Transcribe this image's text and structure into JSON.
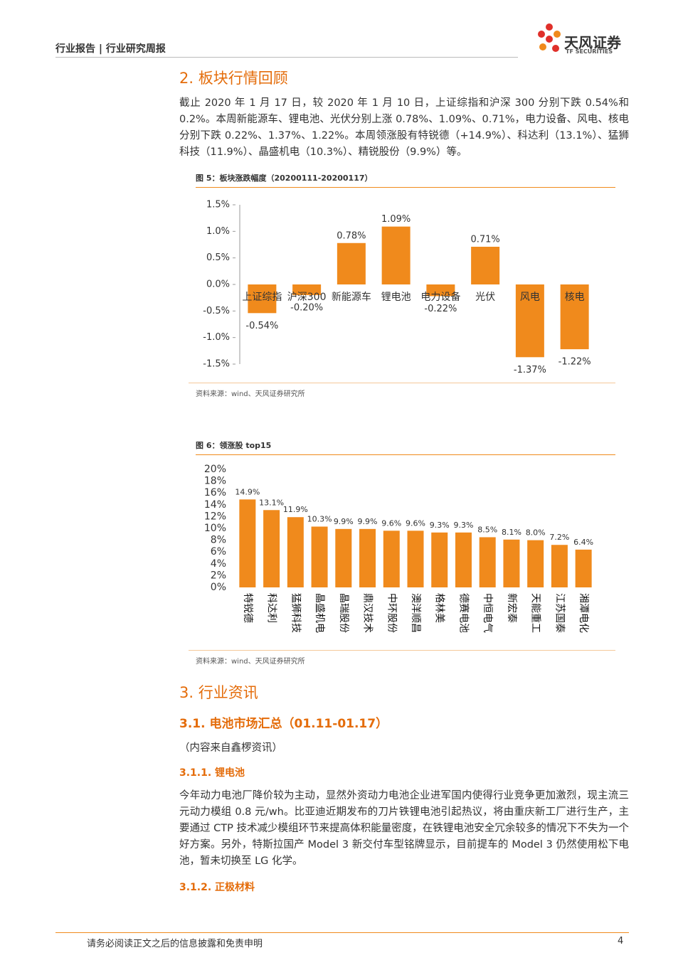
{
  "header": {
    "title": "行业报告 | 行业研究周报",
    "brand": "天风证券",
    "brand_en": "TF SECURITIES"
  },
  "section2": {
    "title": "2. 板块行情回顾",
    "paragraph": "截止 2020 年 1 月 17 日，较 2020 年 1 月 10 日，上证综指和沪深 300 分别下跌 0.54%和 0.2%。本周新能源车、锂电池、光伏分别上涨 0.78%、1.09%、0.71%，电力设备、风电、核电分别下跌 0.22%、1.37%、1.22%。本周领涨股有特锐德（+14.9%）、科达利（13.1%）、猛狮科技（11.9%）、晶盛机电（10.3%）、精锐股份（9.9%）等。"
  },
  "chart_data": [
    {
      "type": "bar",
      "title": "图 5：板块涨跌幅度（20200111-20200117）",
      "source": "资料来源：wind、天风证券研究所",
      "categories": [
        "上证综指",
        "沪深300",
        "新能源车",
        "锂电池",
        "电力设备",
        "光伏",
        "风电",
        "核电"
      ],
      "values": [
        -0.54,
        -0.2,
        0.78,
        1.09,
        -0.22,
        0.71,
        -1.37,
        -1.22
      ],
      "value_labels": [
        "-0.54%",
        "-0.20%",
        "0.78%",
        "1.09%",
        "-0.22%",
        "0.71%",
        "-1.37%",
        "-1.22%"
      ],
      "color": "#f08a1c",
      "ylim": [
        -1.5,
        1.5
      ],
      "yticks": [
        {
          "value": 1.5,
          "label": "1.5%"
        },
        {
          "value": 1.0,
          "label": "1.0%"
        },
        {
          "value": 0.5,
          "label": "0.5%"
        },
        {
          "value": 0.0,
          "label": "0.0%"
        },
        {
          "value": -0.5,
          "label": "-0.5%"
        },
        {
          "value": -1.0,
          "label": "-1.0%"
        },
        {
          "value": -1.5,
          "label": "-1.5%"
        }
      ]
    },
    {
      "type": "bar",
      "title": "图 6：领涨股 top15",
      "source": "资料来源：wind、天风证券研究所",
      "categories": [
        "特锐德",
        "科达利",
        "猛狮科技",
        "晶盛机电",
        "晶瑞股份",
        "鼎汉技术",
        "中环股份",
        "澳洋顺昌",
        "格林美",
        "德赛电池",
        "中恒电气",
        "新宏泰",
        "天能重工",
        "江苏国泰",
        "湘潭电化"
      ],
      "values": [
        14.9,
        13.1,
        11.9,
        10.3,
        9.9,
        9.9,
        9.6,
        9.6,
        9.3,
        9.3,
        8.5,
        8.1,
        8.0,
        7.2,
        6.4
      ],
      "value_labels": [
        "14.9%",
        "13.1%",
        "11.9%",
        "10.3%",
        "9.9%",
        "9.9%",
        "9.6%",
        "9.6%",
        "9.3%",
        "9.3%",
        "8.5%",
        "8.1%",
        "8.0%",
        "7.2%",
        "6.4%"
      ],
      "color": "#f08a1c",
      "ylim": [
        0,
        20
      ],
      "yticks": [
        {
          "value": 0,
          "label": "0%"
        },
        {
          "value": 2,
          "label": "2%"
        },
        {
          "value": 4,
          "label": "4%"
        },
        {
          "value": 6,
          "label": "6%"
        },
        {
          "value": 8,
          "label": "8%"
        },
        {
          "value": 10,
          "label": "10%"
        },
        {
          "value": 12,
          "label": "12%"
        },
        {
          "value": 14,
          "label": "14%"
        },
        {
          "value": 16,
          "label": "16%"
        },
        {
          "value": 18,
          "label": "18%"
        },
        {
          "value": 20,
          "label": "20%"
        }
      ]
    }
  ],
  "section3": {
    "title": "3. 行业资讯",
    "sub_title": "3.1. 电池市场汇总（01.11-01.17）",
    "note": "（内容来自鑫椤资讯）",
    "sub1_title": "3.1.1. 锂电池",
    "sub1_paragraph": "今年动力电池厂降价较为主动，显然外资动力电池企业进军国内使得行业竞争更加激烈，现主流三元动力模组 0.8 元/wh。比亚迪近期发布的刀片铁锂电池引起热议，将由重庆新工厂进行生产，主要通过 CTP 技术减少模组环节来提高体积能量密度，在铁锂电池安全冗余较多的情况下不失为一个好方案。另外，特斯拉国产 Model 3 新交付车型铭牌显示，目前提车的 Model 3 仍然使用松下电池，暂未切换至 LG 化学。",
    "sub2_title": "3.1.2. 正极材料"
  },
  "footer": {
    "disclaimer": "请务必阅读正文之后的信息披露和免责申明",
    "page": "4"
  }
}
